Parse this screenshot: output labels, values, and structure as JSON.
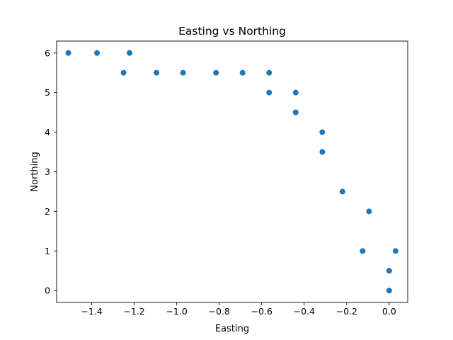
{
  "chart_data": {
    "type": "scatter",
    "title": "Easting vs Northing",
    "xlabel": "Easting",
    "ylabel": "Northing",
    "xlim": [
      -1.565,
      0.087
    ],
    "ylim": [
      -0.3,
      6.3
    ],
    "xticks": [
      -1.4,
      -1.2,
      -1.0,
      -0.8,
      -0.6,
      -0.4,
      -0.2,
      0.0
    ],
    "xtick_labels": [
      "−1.4",
      "−1.2",
      "−1.0",
      "−0.8",
      "−0.6",
      "−0.4",
      "−0.2",
      "0.0"
    ],
    "yticks": [
      0,
      1,
      2,
      3,
      4,
      5,
      6
    ],
    "ytick_labels": [
      "0",
      "1",
      "2",
      "3",
      "4",
      "5",
      "6"
    ],
    "grid": false,
    "color": "#1f77b4",
    "points": [
      {
        "x": -1.51,
        "y": 6
      },
      {
        "x": -1.375,
        "y": 6
      },
      {
        "x": -1.222,
        "y": 6
      },
      {
        "x": -1.25,
        "y": 5.5
      },
      {
        "x": -1.095,
        "y": 5.5
      },
      {
        "x": -0.97,
        "y": 5.5
      },
      {
        "x": -0.815,
        "y": 5.5
      },
      {
        "x": -0.69,
        "y": 5.5
      },
      {
        "x": -0.565,
        "y": 5.5
      },
      {
        "x": -0.565,
        "y": 5
      },
      {
        "x": -0.44,
        "y": 5
      },
      {
        "x": -0.44,
        "y": 4.5
      },
      {
        "x": -0.315,
        "y": 4
      },
      {
        "x": -0.315,
        "y": 3.5
      },
      {
        "x": -0.22,
        "y": 2.5
      },
      {
        "x": -0.095,
        "y": 2
      },
      {
        "x": -0.125,
        "y": 1
      },
      {
        "x": 0.03,
        "y": 1
      },
      {
        "x": 0.0,
        "y": 0.5
      },
      {
        "x": 0.0,
        "y": 0
      }
    ]
  }
}
